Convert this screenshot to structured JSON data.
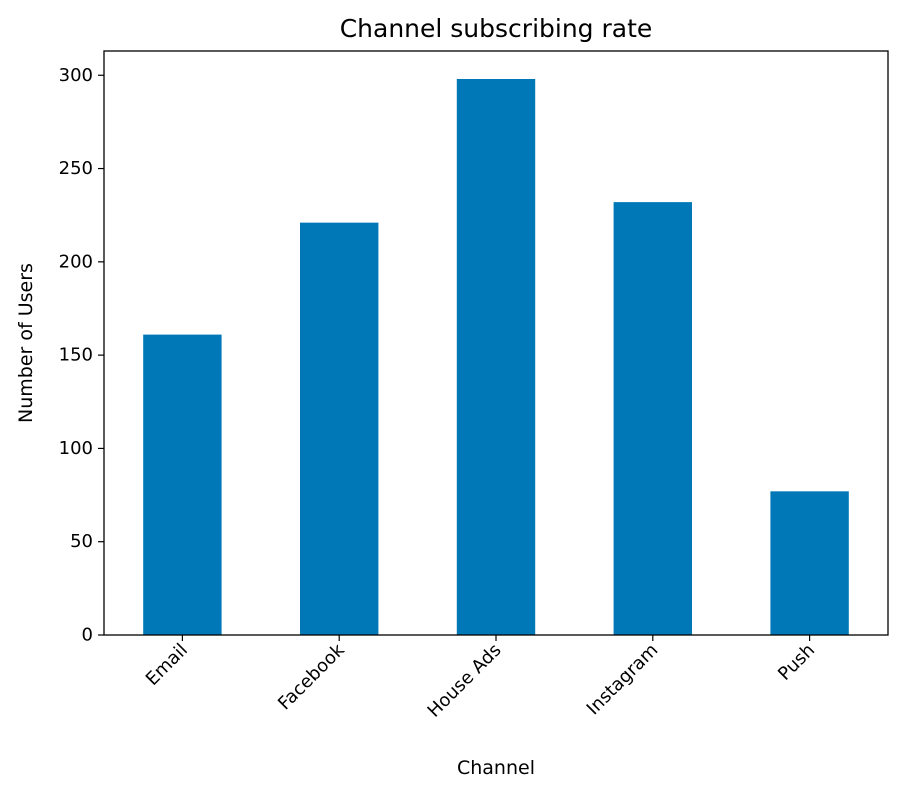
{
  "chart_data": {
    "type": "bar",
    "title": "Channel subscribing rate",
    "xlabel": "Channel",
    "ylabel": "Number of Users",
    "categories": [
      "Email",
      "Facebook",
      "House Ads",
      "Instagram",
      "Push"
    ],
    "values": [
      161,
      221,
      298,
      232,
      77
    ],
    "ylim": [
      0,
      313
    ],
    "yticks": [
      "0",
      "50",
      "100",
      "150",
      "200",
      "250",
      "300"
    ],
    "bar_color": "#0077b6",
    "grid": false,
    "legend": "none"
  }
}
